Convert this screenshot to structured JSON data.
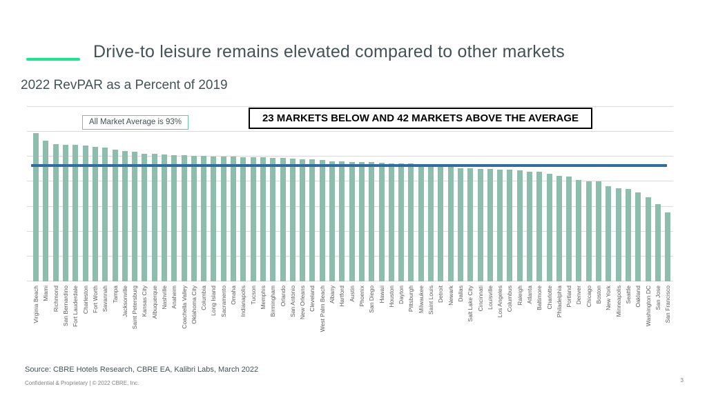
{
  "slide": {
    "title": "Drive-to leisure remains elevated compared to other markets",
    "subtitle": "2022 RevPAR as a Percent of 2019",
    "avg_label": "All Market Average is 93%",
    "callout": "23 MARKETS BELOW AND 42 MARKETS ABOVE THE AVERAGE",
    "source": "Source: CBRE Hotels Research, CBRE EA, Kalibri Labs, March 2022",
    "confidential": "Confidential & Proprietary | © 2022 CBRE, Inc.",
    "page_number": "3"
  },
  "colors": {
    "accent_green": "#17e88f",
    "bar": "#8cbdad",
    "average_line": "#2e6d9e",
    "title_text": "#435254",
    "axis_label_text": "#595959",
    "gridline": "#d9d9d9"
  },
  "chart_data": {
    "type": "bar",
    "title": "2022 RevPAR as a Percent of 2019",
    "xlabel": "",
    "ylabel": "",
    "ylim": [
      0,
      140
    ],
    "gridline_interval": 20,
    "grid": true,
    "yaxis_tick_labels_visible": false,
    "average_line_value": 93,
    "average_line_label": "All Market Average is 93%",
    "annotation": "23 MARKETS BELOW AND 42 MARKETS ABOVE THE AVERAGE",
    "categories": [
      "Virginia Beach",
      "Miami",
      "Richmond",
      "San Bernardino",
      "Fort Lauderdale",
      "Charleston",
      "Fort Worth",
      "Savannah",
      "Tampa",
      "Jacksonville",
      "Saint Petersburg",
      "Kansas City",
      "Albuquerque",
      "Nashville",
      "Anaheim",
      "Coachella Valley",
      "Oklahoma City",
      "Columbia",
      "Long Island",
      "Sacramento",
      "Omaha",
      "Indianapolis",
      "Tucson",
      "Memphis",
      "Birmingham",
      "Orlando",
      "San Antonio",
      "New Orleans",
      "Cleveland",
      "West Palm Beach",
      "Albany",
      "Hartford",
      "Austin",
      "Phoenix",
      "San Diego",
      "Hawaii",
      "Houston",
      "Dayton",
      "Pittsburgh",
      "Milwaukee",
      "Saint Louis",
      "Detroit",
      "Newark",
      "Dallas",
      "Salt Lake City",
      "Cincinnati",
      "Louisville",
      "Los Angeles",
      "Columbus",
      "Raleigh",
      "Atlanta",
      "Baltimore",
      "Charlotte",
      "Philadelphia",
      "Portland",
      "Denver",
      "Chicago",
      "Boston",
      "New York",
      "Minneapolis",
      "Seattle",
      "Oakland",
      "Washington DC",
      "San Jose",
      "San Francisco"
    ],
    "values": [
      119,
      113,
      110,
      109.5,
      109.5,
      109,
      108,
      107.5,
      105.5,
      104.5,
      104,
      102.5,
      102.5,
      102,
      101.5,
      101,
      100.5,
      100.5,
      100,
      100,
      100,
      99.5,
      99.5,
      99.5,
      99,
      99,
      98.5,
      98,
      98,
      97.5,
      96.5,
      96.5,
      96,
      95.5,
      95.5,
      95,
      94.5,
      94.5,
      94.5,
      94,
      94,
      93.5,
      92.5,
      91,
      90.5,
      90,
      90,
      89.5,
      89.5,
      89,
      88,
      88,
      86.5,
      84.5,
      84,
      81.5,
      80,
      80,
      76.5,
      74.5,
      74,
      71.5,
      67.5,
      62,
      55.5
    ]
  }
}
